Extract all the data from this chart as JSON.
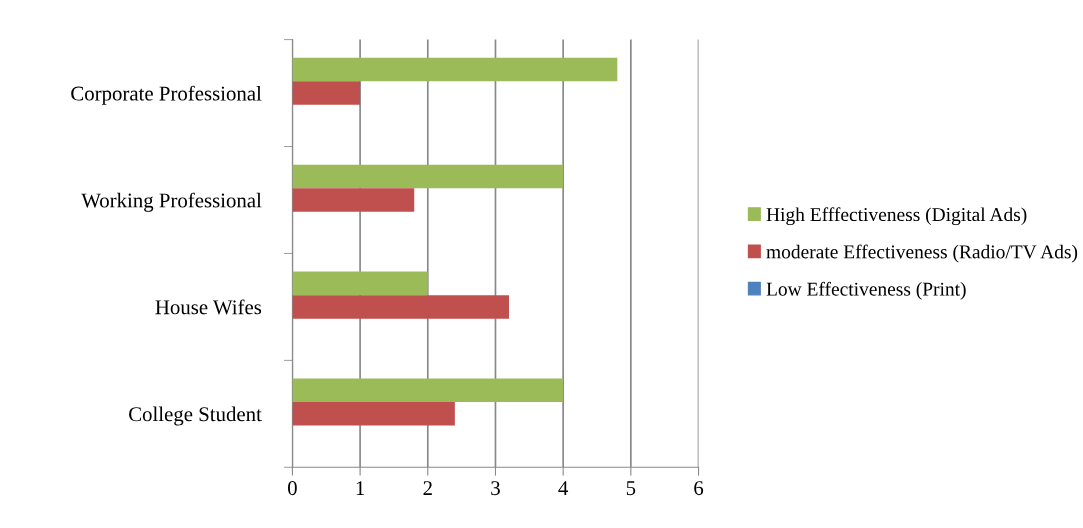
{
  "chart_data": {
    "type": "bar",
    "orientation": "horizontal",
    "categories": [
      "Corporate Professional",
      "Working Professional",
      "House Wifes",
      "College Student"
    ],
    "series": [
      {
        "name": "High Efffectiveness (Digital Ads)",
        "color": "#9bbb59",
        "values": [
          4.8,
          4.0,
          2.0,
          4.0
        ]
      },
      {
        "name": "moderate Effectiveness (Radio/TV Ads)",
        "color": "#c0504d",
        "values": [
          1.0,
          1.8,
          3.2,
          2.4
        ]
      },
      {
        "name": "Low Effectiveness (Print)",
        "color": "#4f81bd",
        "values": [
          null,
          null,
          null,
          null
        ]
      }
    ],
    "xlim": [
      0,
      6
    ],
    "xticks": [
      0,
      1,
      2,
      3,
      4,
      5,
      6
    ],
    "grid": "x",
    "legend": "right"
  }
}
